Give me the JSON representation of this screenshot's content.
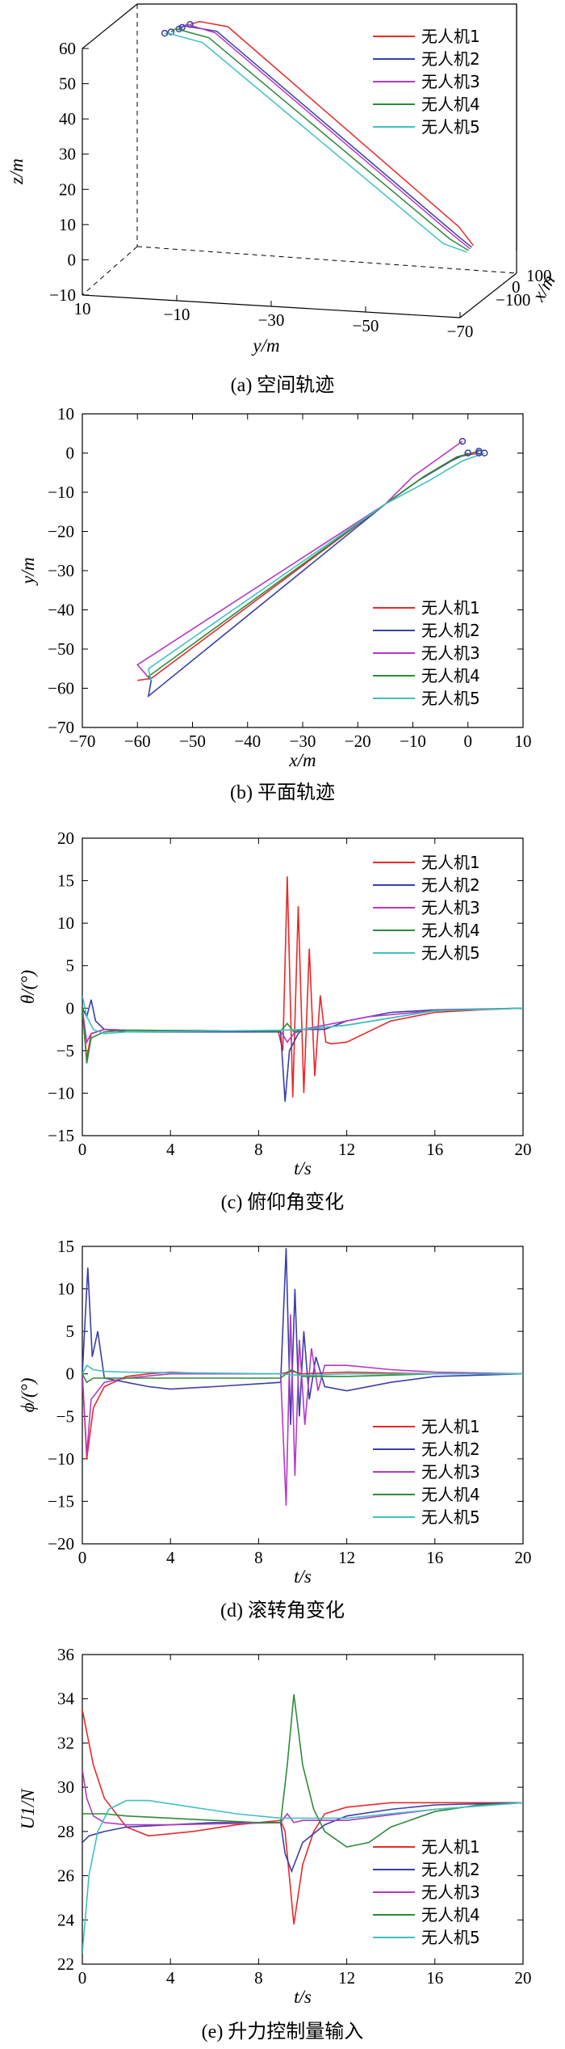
{
  "legend_colors": [
    "#e8292a",
    "#3a3fa6",
    "#b539c4",
    "#2f8a3a",
    "#3fc1c1"
  ],
  "chart_data": [
    {
      "type": "line",
      "subtype": "3d-trajectory",
      "caption": "(a) 空间轨迹",
      "xlabel": "y/m",
      "ylabel": "z/m",
      "zlabel": "x/m",
      "y_ticks": [
        "10",
        "−10",
        "−30",
        "−50",
        "−70"
      ],
      "z_ticks": [
        "60",
        "50",
        "40",
        "30",
        "20",
        "10",
        "0",
        "−10"
      ],
      "x_ticks": [
        "100",
        "0",
        "−100"
      ],
      "ylim": [
        -70,
        10
      ],
      "zlim": [
        -10,
        60
      ],
      "legend_position": "top-right",
      "series": [
        {
          "name": "无人机1",
          "y": [
            0,
            -2,
            -8,
            -57,
            -60
          ],
          "z": [
            58,
            59,
            58,
            5,
            0
          ]
        },
        {
          "name": "无人机2",
          "y": [
            2,
            1,
            -6,
            -57,
            -60
          ],
          "z": [
            57,
            58,
            57,
            3,
            0
          ]
        },
        {
          "name": "无人机3",
          "y": [
            1,
            0,
            -6,
            -56,
            -60
          ],
          "z": [
            58,
            59,
            57,
            4,
            0
          ]
        },
        {
          "name": "无人机4",
          "y": [
            3,
            2,
            -5,
            -56,
            -60
          ],
          "z": [
            57,
            58,
            56,
            3,
            0
          ]
        },
        {
          "name": "无人机5",
          "y": [
            4,
            3,
            -4,
            -55,
            -60
          ],
          "z": [
            57,
            57,
            55,
            2,
            0
          ]
        }
      ]
    },
    {
      "type": "line",
      "subtype": "plane-trajectory",
      "caption": "(b) 平面轨迹",
      "xlabel": "x/m",
      "ylabel": "y/m",
      "xlim": [
        -70,
        10
      ],
      "ylim": [
        -70,
        10
      ],
      "x_ticks": [
        "−70",
        "−60",
        "−50",
        "−40",
        "−30",
        "−20",
        "−10",
        "0",
        "10"
      ],
      "y_ticks": [
        "10",
        "0",
        "−10",
        "−20",
        "−30",
        "−40",
        "−50",
        "−60",
        "−70"
      ],
      "legend_position": "bottom-right",
      "series": [
        {
          "name": "无人机1",
          "x": [
            2,
            -2,
            -8,
            -15,
            -57.5,
            -60
          ],
          "y": [
            0,
            -1,
            -6,
            -13,
            -57.5,
            -58
          ]
        },
        {
          "name": "无人机2",
          "x": [
            0,
            -3,
            -9,
            -15,
            -58,
            -57.5
          ],
          "y": [
            0,
            -2,
            -7,
            -13,
            -62,
            -58
          ]
        },
        {
          "name": "无人机3",
          "x": [
            -1,
            -4,
            -10,
            -15,
            -60,
            -57.5
          ],
          "y": [
            3,
            0,
            -6,
            -13,
            -54,
            -58
          ]
        },
        {
          "name": "无人机4",
          "x": [
            2,
            -2,
            -8,
            -15,
            -58,
            -57.5
          ],
          "y": [
            0.5,
            -1,
            -6,
            -13,
            -57,
            -58
          ]
        },
        {
          "name": "无人机5",
          "x": [
            3,
            -1,
            -7,
            -15,
            -58,
            -57.5
          ],
          "y": [
            0,
            -2,
            -7,
            -13,
            -55,
            -58
          ]
        }
      ]
    },
    {
      "type": "line",
      "caption": "(c) 俯仰角变化",
      "xlabel": "t/s",
      "ylabel": "θ/(°)",
      "xlim": [
        0,
        20
      ],
      "ylim": [
        -15,
        20
      ],
      "x_ticks": [
        "0",
        "4",
        "8",
        "12",
        "16",
        "20"
      ],
      "y_ticks": [
        "20",
        "15",
        "10",
        "5",
        "0",
        "−5",
        "−10",
        "−15"
      ],
      "legend_position": "top-right",
      "series": [
        {
          "name": "无人机1",
          "x": [
            0,
            0.2,
            0.4,
            1,
            2,
            8.9,
            9.1,
            9.3,
            9.55,
            9.8,
            10.05,
            10.3,
            10.55,
            10.8,
            11.05,
            11.3,
            12,
            14,
            16,
            18,
            20
          ],
          "y": [
            0,
            -6,
            -3,
            -2.5,
            -2.6,
            -2.8,
            -5,
            15.5,
            -10.5,
            12,
            -10,
            7,
            -8,
            1.5,
            -4,
            -4.2,
            -4,
            -1.5,
            -0.5,
            -0.2,
            0
          ]
        },
        {
          "name": "无人机2",
          "x": [
            0,
            0.2,
            0.4,
            0.6,
            1,
            2,
            9,
            9.2,
            9.4,
            9.6,
            9.8,
            10,
            11,
            12,
            14,
            16,
            20
          ],
          "y": [
            0,
            -1,
            1,
            -1.5,
            -2.5,
            -2.8,
            -2.8,
            -11,
            -5,
            -4,
            -3,
            -2.5,
            -2.5,
            -1.5,
            -0.5,
            -0.2,
            0
          ]
        },
        {
          "name": "无人机3",
          "x": [
            0,
            0.2,
            0.4,
            1,
            2,
            9,
            9.3,
            9.6,
            10,
            11,
            13,
            16,
            20
          ],
          "y": [
            0,
            -4,
            -3,
            -2.5,
            -2.6,
            -2.7,
            -4,
            -3,
            -2.5,
            -2,
            -1,
            -0.3,
            0
          ]
        },
        {
          "name": "无人机4",
          "x": [
            0,
            0.2,
            0.4,
            1,
            2,
            9,
            9.3,
            9.6,
            10,
            12,
            16,
            20
          ],
          "y": [
            0,
            -6.5,
            -3.5,
            -2.8,
            -2.6,
            -2.7,
            -1.8,
            -2.8,
            -2.5,
            -2,
            -0.3,
            0
          ]
        },
        {
          "name": "无人机5",
          "x": [
            0,
            0.2,
            0.5,
            1,
            2,
            9,
            10,
            12,
            16,
            20
          ],
          "y": [
            1.5,
            -1,
            -2.5,
            -3,
            -2.8,
            -2.6,
            -2.5,
            -2,
            -0.3,
            0
          ]
        }
      ]
    },
    {
      "type": "line",
      "caption": "(d) 滚转角变化",
      "xlabel": "t/s",
      "ylabel": "ϕ/(°)",
      "xlim": [
        0,
        20
      ],
      "ylim": [
        -20,
        15
      ],
      "x_ticks": [
        "0",
        "4",
        "8",
        "12",
        "16",
        "20"
      ],
      "y_ticks": [
        "15",
        "10",
        "5",
        "0",
        "−5",
        "−10",
        "−15",
        "−20"
      ],
      "legend_position": "bottom-right",
      "series": [
        {
          "name": "无人机1",
          "x": [
            0,
            0.2,
            0.5,
            1,
            2,
            3,
            4,
            6,
            9,
            9.5,
            10,
            12,
            16,
            20
          ],
          "y": [
            0,
            -10,
            -4,
            -1.5,
            -0.3,
            0,
            0.2,
            0,
            0,
            0.3,
            0,
            0.2,
            0,
            0
          ]
        },
        {
          "name": "无人机2",
          "x": [
            0,
            0.25,
            0.45,
            0.7,
            1,
            2,
            3,
            4,
            6,
            9,
            9.25,
            9.45,
            9.65,
            9.85,
            10.05,
            10.3,
            10.6,
            11,
            12,
            14,
            16,
            20
          ],
          "y": [
            0,
            12.5,
            2,
            5,
            -0.5,
            -1,
            -1.5,
            -1.8,
            -1.5,
            -1,
            14.8,
            -6,
            10,
            -5,
            5,
            -3,
            2,
            -1.5,
            -2,
            -1,
            -0.3,
            0
          ]
        },
        {
          "name": "无人机3",
          "x": [
            0,
            0.2,
            0.4,
            0.7,
            1,
            2,
            4,
            9,
            9.25,
            9.45,
            9.65,
            9.85,
            10.1,
            10.4,
            10.7,
            11,
            12,
            14,
            16,
            20
          ],
          "y": [
            0,
            -9.5,
            -3,
            -2,
            -1,
            -0.5,
            0,
            0,
            -15.5,
            7,
            -12,
            4,
            -6,
            3,
            -2,
            1,
            1,
            0.5,
            0.2,
            0
          ]
        },
        {
          "name": "无人机4",
          "x": [
            0,
            0.2,
            0.5,
            1,
            2,
            9,
            9.5,
            10,
            12,
            16,
            20
          ],
          "y": [
            0,
            -1,
            -0.5,
            -0.5,
            -0.5,
            -0.5,
            0.5,
            -0.3,
            -0.3,
            0,
            0
          ]
        },
        {
          "name": "无人机5",
          "x": [
            0,
            0.2,
            0.5,
            1,
            2,
            9,
            10,
            12,
            16,
            20
          ],
          "y": [
            0,
            1,
            0.5,
            0.3,
            0.2,
            0,
            -0.2,
            0,
            0,
            0
          ]
        }
      ]
    },
    {
      "type": "line",
      "caption": "(e) 升力控制量输入",
      "xlabel": "t/s",
      "ylabel": "U1/N",
      "xlim": [
        0,
        20
      ],
      "ylim": [
        22,
        36
      ],
      "x_ticks": [
        "0",
        "4",
        "8",
        "12",
        "16",
        "20"
      ],
      "y_ticks": [
        "36",
        "34",
        "32",
        "30",
        "28",
        "26",
        "24",
        "22"
      ],
      "legend_position": "bottom-right",
      "series": [
        {
          "name": "无人机1",
          "x": [
            0,
            0.5,
            1,
            2,
            3,
            5,
            7,
            9,
            9.2,
            9.6,
            10,
            10.5,
            11,
            12,
            14,
            16,
            20
          ],
          "y": [
            33.5,
            31,
            29.5,
            28.2,
            27.8,
            28,
            28.3,
            28.5,
            28,
            23.8,
            26.5,
            28,
            28.8,
            29.1,
            29.3,
            29.3,
            29.3
          ]
        },
        {
          "name": "无人机2",
          "x": [
            0,
            0.3,
            1,
            2,
            4,
            6,
            9,
            9.2,
            9.5,
            10,
            11,
            12,
            14,
            16,
            20
          ],
          "y": [
            27.5,
            27.8,
            28,
            28.2,
            28.3,
            28.4,
            28.4,
            27,
            26.2,
            27.5,
            28.3,
            28.7,
            29,
            29.2,
            29.3
          ]
        },
        {
          "name": "无人机3",
          "x": [
            0,
            0.2,
            0.5,
            1,
            2,
            4,
            9,
            9.3,
            9.6,
            10,
            12,
            16,
            20
          ],
          "y": [
            30.8,
            29.5,
            28.7,
            28.4,
            28.3,
            28.3,
            28.4,
            28.8,
            28.4,
            28.5,
            28.5,
            29,
            29.3
          ]
        },
        {
          "name": "无人机4",
          "x": [
            0,
            1,
            2,
            4,
            6,
            8,
            9,
            9.3,
            9.6,
            10,
            10.5,
            11,
            12,
            13,
            14,
            16,
            18,
            20
          ],
          "y": [
            28.8,
            28.8,
            28.7,
            28.6,
            28.5,
            28.4,
            28.4,
            31,
            34.2,
            31,
            29,
            28,
            27.3,
            27.5,
            28.2,
            28.9,
            29.2,
            29.3
          ]
        },
        {
          "name": "无人机5",
          "x": [
            0,
            0.3,
            0.7,
            1.2,
            2,
            3,
            5,
            7,
            9,
            12,
            16,
            20
          ],
          "y": [
            22.5,
            26,
            28,
            29,
            29.4,
            29.4,
            29.1,
            28.8,
            28.6,
            28.6,
            29,
            29.3
          ]
        }
      ]
    }
  ]
}
